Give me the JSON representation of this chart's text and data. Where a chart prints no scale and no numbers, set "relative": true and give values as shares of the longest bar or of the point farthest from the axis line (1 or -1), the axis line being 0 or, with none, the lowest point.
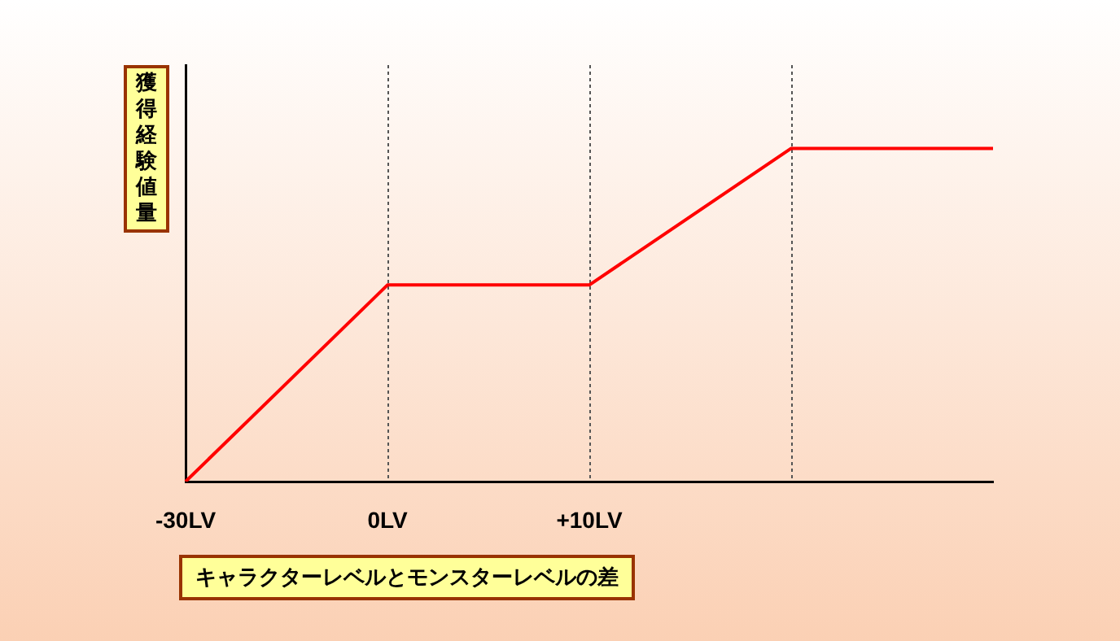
{
  "chart_data": {
    "type": "line",
    "xlabel": "キャラクターレベルとモンスターレベルの差",
    "ylabel": "獲得経験値量",
    "categories": [
      "-30LV",
      "0LV",
      "+10LV",
      null,
      null
    ],
    "relative": true,
    "series": [
      {
        "color": "#ff0000",
        "values": [
          0,
          0.59,
          0.59,
          1,
          1
        ]
      }
    ],
    "grid": "x",
    "legend": false
  }
}
